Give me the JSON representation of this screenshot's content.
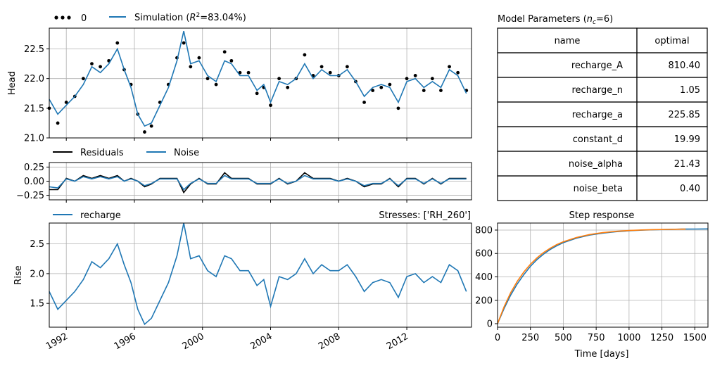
{
  "chart_data": [
    {
      "id": "head",
      "type": "line",
      "ylabel": "Head",
      "ylim": [
        21.0,
        22.85
      ],
      "yticks": [
        "21.0",
        "21.5",
        "22.0",
        "22.5"
      ],
      "xlim": [
        1991.0,
        2015.8
      ],
      "grid": true,
      "legend": {
        "placement": "above-left",
        "observed_label": "0",
        "simulation_label_prefix": "Simulation (",
        "r2_symbol": "R",
        "r2_sup": "2",
        "r2_suffix": "=83.04%)"
      },
      "series": [
        {
          "name": "0",
          "style": "dots",
          "color": "#000000",
          "x": [
            1991.0,
            1991.5,
            1992.0,
            1992.5,
            1993.0,
            1993.5,
            1994.0,
            1994.5,
            1995.0,
            1995.4,
            1995.8,
            1996.2,
            1996.6,
            1997.0,
            1997.5,
            1998.0,
            1998.5,
            1998.9,
            1999.3,
            1999.8,
            2000.3,
            2000.8,
            2001.3,
            2001.7,
            2002.2,
            2002.7,
            2003.2,
            2003.6,
            2004.0,
            2004.5,
            2005.0,
            2005.5,
            2006.0,
            2006.5,
            2007.0,
            2007.5,
            2008.0,
            2008.5,
            2009.0,
            2009.5,
            2010.0,
            2010.5,
            2011.0,
            2011.5,
            2012.0,
            2012.5,
            2013.0,
            2013.5,
            2014.0,
            2014.5,
            2015.0,
            2015.5
          ],
          "values": [
            21.5,
            21.25,
            21.6,
            21.7,
            22.0,
            22.25,
            22.2,
            22.3,
            22.6,
            22.15,
            21.9,
            21.4,
            21.1,
            21.2,
            21.6,
            21.9,
            22.35,
            22.6,
            22.2,
            22.35,
            22.0,
            21.9,
            22.45,
            22.3,
            22.1,
            22.1,
            21.75,
            21.85,
            21.55,
            22.0,
            21.85,
            22.0,
            22.4,
            22.05,
            22.2,
            22.1,
            22.05,
            22.2,
            21.95,
            21.6,
            21.8,
            21.85,
            21.9,
            21.5,
            22.0,
            22.05,
            21.8,
            22.0,
            21.8,
            22.2,
            22.1,
            21.8
          ]
        },
        {
          "name": "Simulation",
          "style": "line",
          "color": "#1f77b4",
          "x": [
            1991.0,
            1991.5,
            1992.0,
            1992.5,
            1993.0,
            1993.5,
            1994.0,
            1994.5,
            1995.0,
            1995.4,
            1995.8,
            1996.2,
            1996.6,
            1997.0,
            1997.5,
            1998.0,
            1998.5,
            1998.9,
            1999.3,
            1999.8,
            2000.3,
            2000.8,
            2001.3,
            2001.7,
            2002.2,
            2002.7,
            2003.2,
            2003.6,
            2004.0,
            2004.5,
            2005.0,
            2005.5,
            2006.0,
            2006.5,
            2007.0,
            2007.5,
            2008.0,
            2008.5,
            2009.0,
            2009.5,
            2010.0,
            2010.5,
            2011.0,
            2011.5,
            2012.0,
            2012.5,
            2013.0,
            2013.5,
            2014.0,
            2014.5,
            2015.0,
            2015.5
          ],
          "values": [
            21.65,
            21.4,
            21.55,
            21.7,
            21.9,
            22.2,
            22.1,
            22.25,
            22.5,
            22.15,
            21.85,
            21.4,
            21.2,
            21.25,
            21.55,
            21.85,
            22.3,
            22.8,
            22.25,
            22.3,
            22.05,
            21.95,
            22.3,
            22.25,
            22.05,
            22.05,
            21.8,
            21.9,
            21.6,
            21.95,
            21.9,
            22.0,
            22.25,
            22.0,
            22.15,
            22.05,
            22.05,
            22.15,
            21.95,
            21.7,
            21.85,
            21.9,
            21.85,
            21.6,
            21.95,
            22.0,
            21.85,
            21.95,
            21.85,
            22.15,
            22.05,
            21.75
          ]
        }
      ]
    },
    {
      "id": "residuals",
      "type": "line",
      "ylim": [
        -0.33,
        0.33
      ],
      "yticks": [
        "0.25",
        "0.00",
        "−0.25"
      ],
      "xlim": [
        1991.0,
        2015.8
      ],
      "grid": true,
      "legend": {
        "placement": "above-left"
      },
      "series": [
        {
          "name": "Residuals",
          "color": "#000000",
          "x": [
            1991.0,
            1991.5,
            1992.0,
            1992.5,
            1993.0,
            1993.5,
            1994.0,
            1994.5,
            1995.0,
            1995.4,
            1995.8,
            1996.2,
            1996.6,
            1997.0,
            1997.5,
            1998.0,
            1998.5,
            1998.9,
            1999.3,
            1999.8,
            2000.3,
            2000.8,
            2001.3,
            2001.7,
            2002.2,
            2002.7,
            2003.2,
            2003.6,
            2004.0,
            2004.5,
            2005.0,
            2005.5,
            2006.0,
            2006.5,
            2007.0,
            2007.5,
            2008.0,
            2008.5,
            2009.0,
            2009.5,
            2010.0,
            2010.5,
            2011.0,
            2011.5,
            2012.0,
            2012.5,
            2013.0,
            2013.5,
            2014.0,
            2014.5,
            2015.0,
            2015.5
          ],
          "values": [
            -0.15,
            -0.15,
            0.05,
            0.0,
            0.1,
            0.05,
            0.1,
            0.05,
            0.1,
            0.0,
            0.05,
            0.0,
            -0.1,
            -0.05,
            0.05,
            0.05,
            0.05,
            -0.2,
            -0.05,
            0.05,
            -0.05,
            -0.05,
            0.15,
            0.05,
            0.05,
            0.05,
            -0.05,
            -0.05,
            -0.05,
            0.05,
            -0.05,
            0.0,
            0.15,
            0.05,
            0.05,
            0.05,
            0.0,
            0.05,
            0.0,
            -0.1,
            -0.05,
            -0.05,
            0.05,
            -0.1,
            0.05,
            0.05,
            -0.05,
            0.05,
            -0.05,
            0.05,
            0.05,
            0.05
          ]
        },
        {
          "name": "Noise",
          "color": "#1f77b4",
          "x": [
            1991.0,
            1991.5,
            1992.0,
            1992.5,
            1993.0,
            1993.5,
            1994.0,
            1994.5,
            1995.0,
            1995.4,
            1995.8,
            1996.2,
            1996.6,
            1997.0,
            1997.5,
            1998.0,
            1998.5,
            1998.9,
            1999.3,
            1999.8,
            2000.3,
            2000.8,
            2001.3,
            2001.7,
            2002.2,
            2002.7,
            2003.2,
            2003.6,
            2004.0,
            2004.5,
            2005.0,
            2005.5,
            2006.0,
            2006.5,
            2007.0,
            2007.5,
            2008.0,
            2008.5,
            2009.0,
            2009.5,
            2010.0,
            2010.5,
            2011.0,
            2011.5,
            2012.0,
            2012.5,
            2013.0,
            2013.5,
            2014.0,
            2014.5,
            2015.0,
            2015.5
          ],
          "values": [
            -0.1,
            -0.12,
            0.04,
            0.0,
            0.08,
            0.04,
            0.08,
            0.04,
            0.08,
            0.0,
            0.04,
            0.0,
            -0.08,
            -0.04,
            0.04,
            0.04,
            0.04,
            -0.15,
            -0.04,
            0.04,
            -0.04,
            -0.04,
            0.1,
            0.04,
            0.04,
            0.04,
            -0.04,
            -0.04,
            -0.04,
            0.04,
            -0.04,
            0.0,
            0.1,
            0.04,
            0.04,
            0.04,
            0.0,
            0.04,
            0.0,
            -0.08,
            -0.04,
            -0.04,
            0.04,
            -0.08,
            0.04,
            0.04,
            -0.04,
            0.04,
            -0.04,
            0.04,
            0.04,
            0.04
          ]
        }
      ]
    },
    {
      "id": "recharge",
      "type": "line",
      "ylabel": "Rise",
      "title_right": "Stresses: ['RH_260']",
      "ylim": [
        1.1,
        2.85
      ],
      "yticks": [
        "1.5",
        "2.0",
        "2.5"
      ],
      "xlim": [
        1991.0,
        2015.8
      ],
      "xticks": [
        "1992",
        "1996",
        "2000",
        "2004",
        "2008",
        "2012"
      ],
      "grid": true,
      "legend": {
        "placement": "above-left"
      },
      "series": [
        {
          "name": "recharge",
          "color": "#1f77b4",
          "x": [
            1991.0,
            1991.5,
            1992.0,
            1992.5,
            1993.0,
            1993.5,
            1994.0,
            1994.5,
            1995.0,
            1995.4,
            1995.8,
            1996.2,
            1996.6,
            1997.0,
            1997.5,
            1998.0,
            1998.5,
            1998.9,
            1999.3,
            1999.8,
            2000.3,
            2000.8,
            2001.3,
            2001.7,
            2002.2,
            2002.7,
            2003.2,
            2003.6,
            2004.0,
            2004.5,
            2005.0,
            2005.5,
            2006.0,
            2006.5,
            2007.0,
            2007.5,
            2008.0,
            2008.5,
            2009.0,
            2009.5,
            2010.0,
            2010.5,
            2011.0,
            2011.5,
            2012.0,
            2012.5,
            2013.0,
            2013.5,
            2014.0,
            2014.5,
            2015.0,
            2015.5
          ],
          "values": [
            1.7,
            1.4,
            1.55,
            1.7,
            1.9,
            2.2,
            2.1,
            2.25,
            2.5,
            2.15,
            1.85,
            1.4,
            1.15,
            1.25,
            1.55,
            1.85,
            2.3,
            2.85,
            2.25,
            2.3,
            2.05,
            1.95,
            2.3,
            2.25,
            2.05,
            2.05,
            1.8,
            1.9,
            1.45,
            1.95,
            1.9,
            2.0,
            2.25,
            2.0,
            2.15,
            2.05,
            2.05,
            2.15,
            1.95,
            1.7,
            1.85,
            1.9,
            1.85,
            1.6,
            1.95,
            2.0,
            1.85,
            1.95,
            1.85,
            2.15,
            2.05,
            1.7
          ]
        }
      ]
    },
    {
      "id": "step",
      "type": "line",
      "title": "Step response",
      "xlabel": "Time [days]",
      "xlim": [
        0,
        1600
      ],
      "ylim": [
        -30,
        860
      ],
      "xticks": [
        0,
        250,
        500,
        750,
        1000,
        1250,
        1500
      ],
      "yticks": [
        0,
        200,
        400,
        600,
        800
      ],
      "grid": true,
      "series": [
        {
          "name": "step-blue",
          "color": "#1f77b4",
          "x": [
            0,
            50,
            100,
            150,
            200,
            250,
            300,
            350,
            400,
            450,
            500,
            600,
            700,
            800,
            900,
            1000,
            1100,
            1200,
            1300,
            1400,
            1500,
            1600
          ],
          "values": [
            0,
            130,
            245,
            340,
            420,
            490,
            548,
            595,
            634,
            666,
            692,
            731,
            757,
            774,
            786,
            794,
            799,
            803,
            806,
            808,
            809,
            810
          ]
        },
        {
          "name": "step-orange",
          "color": "#ff7f0e",
          "x": [
            0,
            50,
            100,
            150,
            200,
            250,
            300,
            350,
            400,
            450,
            500,
            600,
            700,
            800,
            900,
            1000,
            1100,
            1200,
            1300,
            1430
          ],
          "values": [
            0,
            145,
            265,
            362,
            442,
            508,
            563,
            608,
            645,
            676,
            700,
            737,
            762,
            778,
            789,
            796,
            801,
            804,
            806,
            808
          ]
        }
      ]
    }
  ],
  "params_table": {
    "title_prefix": "Model Parameters (",
    "title_n": "n",
    "title_sub": "c",
    "title_suffix": "=6)",
    "headers": [
      "name",
      "optimal"
    ],
    "rows": [
      [
        "recharge_A",
        "810.40"
      ],
      [
        "recharge_n",
        "1.05"
      ],
      [
        "recharge_a",
        "225.85"
      ],
      [
        "constant_d",
        "19.99"
      ],
      [
        "noise_alpha",
        "21.43"
      ],
      [
        "noise_beta",
        "0.40"
      ]
    ]
  }
}
